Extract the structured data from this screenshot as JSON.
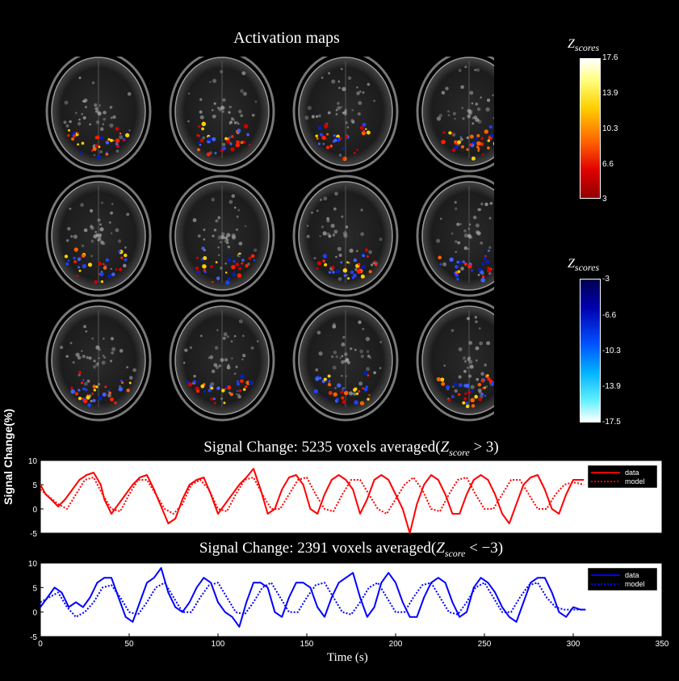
{
  "header": {
    "title": "Activation maps"
  },
  "colorbars": [
    {
      "label_base": "Z",
      "label_sub": "scores",
      "ticks": [
        "17.6",
        "13.9",
        "10.3",
        "6.6",
        "3"
      ]
    },
    {
      "label_base": "Z",
      "label_sub": "scores",
      "ticks": [
        "-3",
        "-6.6",
        "-10.3",
        "-13.9",
        "-17.5"
      ]
    }
  ],
  "brain_slices": {
    "rows": 3,
    "cols": 4,
    "count": 12
  },
  "chart_data": [
    {
      "type": "line",
      "title": "Signal Change: 5235 voxels averaged(Z_score > 3)",
      "title_prefix": "Signal Change: 5235 voxels averaged(",
      "title_var": "Z",
      "title_sub": "score",
      "title_op": " > 3)",
      "ylim": [
        -5,
        10
      ],
      "yticks": [
        "10",
        "5",
        "0",
        "-5"
      ],
      "xlim": [
        0,
        350
      ],
      "legend": [
        "data",
        "model"
      ],
      "legend_position": "top-right",
      "series": [
        {
          "name": "data",
          "style": "solid",
          "color": "#ff0000",
          "x": [
            0,
            3,
            6,
            10,
            14,
            18,
            22,
            26,
            30,
            34,
            36,
            40,
            44,
            48,
            52,
            56,
            60,
            64,
            68,
            72,
            76,
            80,
            84,
            88,
            92,
            96,
            100,
            104,
            108,
            112,
            116,
            120,
            124,
            128,
            132,
            136,
            140,
            144,
            148,
            152,
            156,
            160,
            164,
            168,
            172,
            176,
            180,
            184,
            188,
            192,
            196,
            200,
            204,
            208,
            212,
            216,
            220,
            224,
            228,
            232,
            236,
            240,
            244,
            248,
            252,
            256,
            260,
            264,
            268,
            272,
            276,
            280,
            284,
            288,
            292,
            296,
            300,
            303,
            306
          ],
          "y": [
            5,
            3,
            2,
            0.5,
            2,
            4,
            6,
            7,
            7.5,
            5,
            2,
            -1,
            1,
            3,
            5,
            6.5,
            7,
            4,
            0.5,
            -3,
            -2,
            2,
            5,
            6,
            6.5,
            3,
            -1,
            1,
            3,
            5,
            6.5,
            8.3,
            4,
            -1,
            0,
            4,
            6.5,
            7,
            5,
            0,
            -1,
            3,
            6,
            7,
            6,
            4,
            -1,
            2,
            6,
            7,
            6,
            3,
            0,
            -5,
            1,
            5,
            7,
            6,
            3,
            -1,
            -1,
            3,
            6,
            7,
            6,
            3,
            -1,
            -3,
            1,
            5,
            6.5,
            7,
            4,
            0,
            -1,
            3,
            6,
            6,
            6
          ]
        },
        {
          "name": "model",
          "style": "dotted",
          "color": "#ff0000",
          "x": [
            0,
            5,
            10,
            15,
            20,
            25,
            30,
            35,
            40,
            45,
            50,
            55,
            60,
            65,
            70,
            75,
            80,
            85,
            90,
            95,
            100,
            105,
            110,
            115,
            120,
            125,
            130,
            135,
            140,
            145,
            150,
            155,
            160,
            165,
            170,
            175,
            180,
            185,
            190,
            195,
            200,
            205,
            210,
            215,
            220,
            225,
            230,
            235,
            240,
            245,
            250,
            255,
            260,
            265,
            270,
            275,
            280,
            285,
            290,
            295,
            300,
            306
          ],
          "y": [
            4,
            2.5,
            1,
            0,
            3,
            6,
            6.5,
            3,
            0,
            -0.5,
            3,
            6,
            6,
            3,
            0,
            -1,
            1,
            5,
            6,
            4,
            0,
            -0.5,
            3,
            6,
            6.5,
            3,
            0,
            0,
            3,
            6,
            6.5,
            3,
            0,
            -0.5,
            3,
            6,
            6,
            3,
            0,
            -1,
            2,
            5,
            6.5,
            4,
            0,
            -0.5,
            3,
            6,
            6.5,
            3,
            0,
            0,
            3,
            6,
            6,
            3,
            0,
            0,
            3,
            5,
            5.5,
            5
          ]
        }
      ]
    },
    {
      "type": "line",
      "title": "Signal Change: 2391 voxels averaged(Z_score < -3)",
      "title_prefix": "Signal Change: 2391 voxels averaged(",
      "title_var": "Z",
      "title_sub": "score",
      "title_op": " < −3)",
      "ylim": [
        -5,
        10
      ],
      "yticks": [
        "10",
        "5",
        "0",
        "-5"
      ],
      "xlim": [
        0,
        350
      ],
      "xticks": [
        "0",
        "50",
        "100",
        "150",
        "200",
        "250",
        "300",
        "350"
      ],
      "xlabel": "Time (s)",
      "ylabel": "Signal Change(%)",
      "legend": [
        "data",
        "model"
      ],
      "legend_position": "top-right",
      "series": [
        {
          "name": "data",
          "style": "solid",
          "color": "#0000ff",
          "x": [
            0,
            4,
            8,
            12,
            16,
            20,
            24,
            28,
            32,
            36,
            40,
            44,
            48,
            52,
            56,
            60,
            64,
            68,
            72,
            76,
            80,
            84,
            88,
            92,
            96,
            100,
            104,
            108,
            112,
            116,
            120,
            124,
            128,
            132,
            136,
            140,
            144,
            148,
            152,
            156,
            160,
            164,
            168,
            172,
            176,
            180,
            184,
            188,
            192,
            196,
            200,
            204,
            208,
            212,
            216,
            220,
            224,
            228,
            232,
            236,
            240,
            244,
            248,
            252,
            256,
            260,
            264,
            268,
            272,
            276,
            280,
            284,
            288,
            292,
            296,
            300,
            304,
            307
          ],
          "y": [
            1,
            3,
            5,
            4,
            1,
            2,
            1,
            3,
            6,
            7,
            7,
            3,
            -1,
            -2,
            2,
            6,
            7,
            9,
            4,
            1,
            0,
            2,
            5,
            7,
            6,
            2,
            0,
            -1,
            -3,
            2,
            6,
            6,
            5,
            0,
            -1,
            3,
            6,
            6,
            5,
            1,
            -1,
            3,
            6,
            7,
            8,
            3,
            -1,
            1,
            6,
            8,
            6,
            2,
            -1,
            -1,
            3,
            6,
            7,
            6,
            2,
            -1,
            0,
            5,
            7,
            6,
            4,
            1,
            -1,
            -2,
            2,
            6,
            7,
            7,
            4,
            0,
            -1,
            1,
            0.5,
            0.5
          ]
        },
        {
          "name": "model",
          "style": "dotted",
          "color": "#0000ff",
          "x": [
            0,
            5,
            10,
            15,
            20,
            25,
            30,
            35,
            40,
            45,
            50,
            55,
            60,
            65,
            70,
            75,
            80,
            85,
            90,
            95,
            100,
            105,
            110,
            115,
            120,
            125,
            130,
            135,
            140,
            145,
            150,
            155,
            160,
            165,
            170,
            175,
            180,
            185,
            190,
            195,
            200,
            205,
            210,
            215,
            220,
            225,
            230,
            235,
            240,
            245,
            250,
            255,
            260,
            265,
            270,
            275,
            280,
            285,
            290,
            295,
            300,
            306
          ],
          "y": [
            2,
            3,
            4,
            1,
            -1,
            0,
            2,
            5,
            5.5,
            3,
            0,
            -0.5,
            2,
            5,
            6,
            3,
            0,
            0,
            3,
            5.5,
            6,
            3,
            0,
            -0.5,
            2,
            5,
            6,
            3,
            0,
            0,
            3,
            5.5,
            6,
            3,
            0,
            -0.5,
            2,
            5,
            6,
            3,
            0,
            0,
            3,
            5.5,
            6,
            3,
            0,
            -0.5,
            2,
            5,
            6,
            3,
            0,
            0,
            3,
            5.5,
            6,
            3,
            1,
            0.5,
            0.5,
            0.5
          ]
        }
      ]
    }
  ]
}
